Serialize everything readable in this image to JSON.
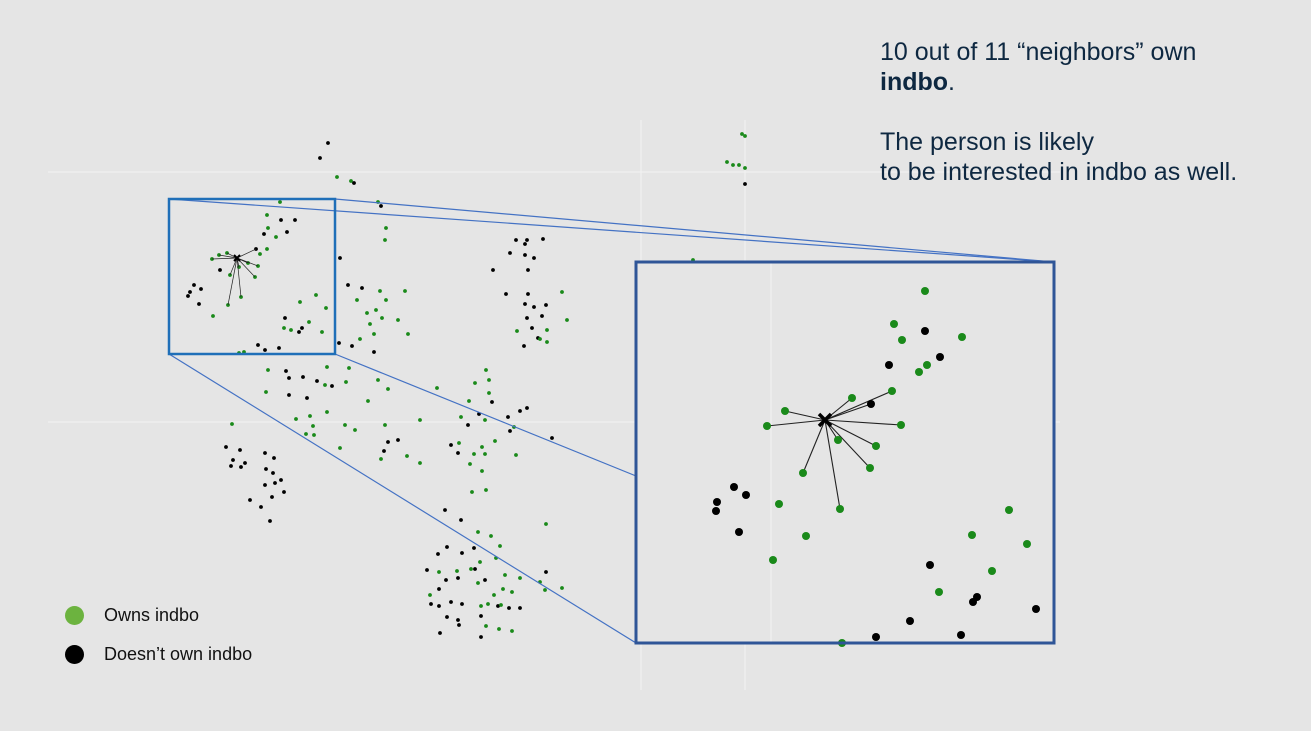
{
  "headline": {
    "line1_pre": "10 out of 11 “neighbors” own",
    "line1_bold": "indbo",
    "line1_post": ".",
    "line2a": "The person is likely",
    "line2b": "to be interested in indbo as well."
  },
  "legend": {
    "owns_label": "Owns indbo",
    "not_owns_label": "Doesn’t own indbo",
    "owns_color": "#6cb33f",
    "not_owns_color": "#000000"
  },
  "colors": {
    "background": "#e5e5e5",
    "owns_point": "#1a8a1a",
    "not_owns_point": "#000000",
    "zoom_box_small": "#1f6fb8",
    "zoom_box_large": "#2f5597",
    "connector": "#4472c4",
    "headline_text": "#0e2841"
  },
  "neighbors": {
    "total": 11,
    "owning": 10
  }
}
